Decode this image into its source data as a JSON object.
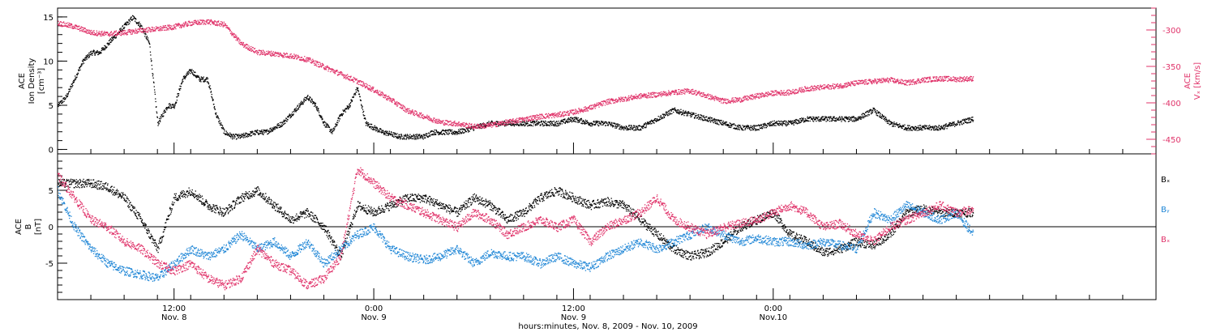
{
  "colors": {
    "black": "#000000",
    "pink": "#e0336a",
    "blue": "#1f86d6"
  },
  "chart_data": [
    {
      "type": "scatter",
      "panel": "top",
      "left_axis": {
        "label_lines": [
          "ACE",
          "Ion Density",
          "[cm⁻³]"
        ],
        "ylim": [
          -0.5,
          16
        ],
        "ticks": [
          0,
          5,
          10,
          15
        ],
        "tick_labels": [
          "0",
          "5",
          "10",
          "15"
        ]
      },
      "right_axis": {
        "label_lines": [
          "ACE",
          "Vₓ [km/s]"
        ],
        "ylim": [
          -470,
          -270
        ],
        "ticks": [
          -450,
          -400,
          -350,
          -300
        ],
        "tick_labels": [
          "-450",
          "-400",
          "-350",
          "-300"
        ]
      },
      "series": [
        {
          "axis": "left",
          "color": "black",
          "x_hours": [
            0,
            0.5,
            1,
            1.5,
            2,
            2.5,
            3,
            3.5,
            4,
            4.5,
            5,
            5.5,
            6,
            6.3,
            6.6,
            7,
            7.5,
            8,
            8.5,
            9,
            9.5,
            10,
            10.5,
            11,
            11.5,
            12,
            12.5,
            13,
            13.5,
            14,
            14.5,
            15,
            15.5,
            16,
            16.5,
            17,
            17.5,
            18,
            18.5,
            19,
            19.5,
            20,
            20.5,
            21,
            21.5,
            22,
            22.5,
            23,
            23.5,
            24,
            25,
            26,
            27,
            28,
            29,
            30,
            31,
            32,
            33,
            34,
            35,
            36,
            37,
            38,
            39,
            40,
            41,
            42,
            43,
            44,
            45,
            46,
            47,
            48,
            49,
            50,
            51,
            52,
            53,
            54,
            55
          ],
          "values": [
            5,
            6,
            8,
            10,
            11,
            11,
            12,
            13,
            14,
            15,
            14,
            12,
            3,
            4,
            5,
            5,
            8,
            9,
            8,
            8,
            4,
            2,
            1.5,
            1.5,
            1.8,
            2,
            2,
            2.5,
            3,
            4,
            5,
            6,
            5,
            3,
            2,
            4,
            5,
            7,
            3,
            2.5,
            2,
            1.8,
            1.5,
            1.5,
            1.5,
            1.5,
            2,
            2,
            2,
            2,
            2.5,
            3,
            3,
            3,
            3,
            3,
            3.5,
            3,
            3,
            2.5,
            2.5,
            3.5,
            4.5,
            4,
            3.5,
            3,
            2.5,
            2.5,
            3,
            3,
            3.5,
            3.5,
            3.5,
            3.5,
            4.5,
            3,
            2.5,
            2.5,
            2.5,
            3,
            3.5
          ]
        },
        {
          "axis": "right",
          "color": "pink",
          "x_hours": [
            0,
            1,
            2,
            3,
            4,
            5,
            6,
            7,
            8,
            9,
            10,
            11,
            12,
            13,
            14,
            15,
            16,
            17,
            18,
            19,
            20,
            21,
            22,
            23,
            24,
            25,
            26,
            27,
            28,
            29,
            30,
            31,
            32,
            33,
            34,
            35,
            36,
            37,
            38,
            39,
            40,
            41,
            42,
            43,
            44,
            45,
            46,
            47,
            48,
            49,
            50,
            51,
            52,
            53,
            54,
            55
          ],
          "values": [
            -290,
            -295,
            -303,
            -305,
            -303,
            -300,
            -298,
            -295,
            -290,
            -288,
            -292,
            -318,
            -330,
            -332,
            -335,
            -340,
            -350,
            -360,
            -370,
            -382,
            -395,
            -410,
            -418,
            -426,
            -428,
            -432,
            -430,
            -426,
            -422,
            -418,
            -416,
            -412,
            -406,
            -398,
            -394,
            -390,
            -388,
            -385,
            -383,
            -390,
            -397,
            -395,
            -390,
            -386,
            -385,
            -380,
            -378,
            -376,
            -372,
            -370,
            -368,
            -372,
            -368,
            -366,
            -367,
            -366
          ]
        }
      ]
    },
    {
      "type": "scatter",
      "panel": "bottom",
      "left_axis": {
        "label_lines": [
          "ACE",
          "B",
          "[nT]"
        ],
        "ylim": [
          -10,
          10
        ],
        "ticks": [
          -5,
          0,
          5
        ],
        "tick_labels": [
          "-5",
          "0",
          "5"
        ]
      },
      "legend": {
        "placement": "right",
        "entries": [
          {
            "label": "Bₓ",
            "color": "black"
          },
          {
            "label": "Bᵧ",
            "color": "blue"
          },
          {
            "label": "Bₓ",
            "color": "pink"
          }
        ]
      },
      "series": [
        {
          "color": "black",
          "x_hours": [
            0,
            1,
            2,
            3,
            4,
            5,
            6,
            7,
            8,
            9,
            10,
            11,
            12,
            13,
            14,
            15,
            16,
            17,
            18,
            19,
            20,
            21,
            22,
            23,
            24,
            25,
            26,
            27,
            28,
            29,
            30,
            31,
            32,
            33,
            34,
            35,
            36,
            37,
            38,
            39,
            40,
            41,
            42,
            43,
            44,
            45,
            46,
            47,
            48,
            49,
            50,
            51,
            52,
            53,
            54,
            55
          ],
          "values": [
            6,
            6,
            6,
            5.5,
            4,
            1,
            -3,
            4,
            5,
            3,
            2,
            4,
            5,
            3,
            1,
            2,
            0,
            -4,
            3,
            2,
            3,
            4,
            4,
            3,
            2,
            4,
            3,
            1,
            2,
            4,
            5,
            4,
            3,
            3.5,
            3,
            1,
            -1,
            -3,
            -4,
            -3.5,
            -2,
            0,
            1,
            2,
            -1,
            -2,
            -3.5,
            -3,
            -2,
            -2.5,
            -1,
            2,
            2.5,
            2,
            2,
            2
          ]
        },
        {
          "color": "blue",
          "x_hours": [
            0,
            1,
            2,
            3,
            4,
            5,
            6,
            7,
            8,
            9,
            10,
            11,
            12,
            13,
            14,
            15,
            16,
            17,
            18,
            19,
            20,
            21,
            22,
            23,
            24,
            25,
            26,
            27,
            28,
            29,
            30,
            31,
            32,
            33,
            34,
            35,
            36,
            37,
            38,
            39,
            40,
            41,
            42,
            43,
            44,
            45,
            46,
            47,
            48,
            49,
            50,
            51,
            52,
            53,
            54,
            55
          ],
          "values": [
            5,
            0,
            -3,
            -5,
            -6,
            -6.5,
            -7,
            -5,
            -3,
            -4,
            -3,
            -1,
            -3,
            -2,
            -4,
            -2,
            -5,
            -3,
            -1,
            0,
            -3,
            -4,
            -4.5,
            -4,
            -3,
            -5,
            -3.5,
            -4,
            -4,
            -5,
            -4,
            -5,
            -5.5,
            -4,
            -3,
            -2,
            -3,
            -2,
            -1,
            0,
            -1,
            -2,
            -1.5,
            -2,
            -2,
            -2.5,
            -2,
            -2.5,
            -3,
            2,
            1,
            3,
            2,
            1,
            2,
            -1
          ]
        },
        {
          "color": "pink",
          "x_hours": [
            0,
            1,
            2,
            3,
            4,
            5,
            6,
            7,
            8,
            9,
            10,
            11,
            12,
            13,
            14,
            15,
            16,
            17,
            18,
            19,
            20,
            21,
            22,
            23,
            24,
            25,
            26,
            27,
            28,
            29,
            30,
            31,
            32,
            33,
            34,
            35,
            36,
            37,
            38,
            39,
            40,
            41,
            42,
            43,
            44,
            45,
            46,
            47,
            48,
            49,
            50,
            51,
            52,
            53,
            54,
            55
          ],
          "values": [
            7,
            4,
            1,
            0,
            -2,
            -3,
            -5,
            -6,
            -5,
            -7,
            -8,
            -7,
            -3,
            -5,
            -6,
            -8,
            -7,
            -4,
            8,
            6,
            4,
            3,
            2,
            1,
            0,
            2,
            1,
            -1,
            0,
            1,
            0,
            1,
            -2,
            0,
            1,
            2,
            4,
            1,
            0,
            -1,
            0,
            0.5,
            1,
            2,
            3,
            2,
            0,
            0.5,
            -1,
            -2,
            0,
            1,
            2,
            3,
            2,
            2.5
          ]
        }
      ]
    }
  ],
  "x_axis": {
    "xlim_hours": [
      0,
      66
    ],
    "major_ticks": [
      {
        "hour": 7,
        "time": "12:00",
        "date": "Nov. 8"
      },
      {
        "hour": 19,
        "time": "0:00",
        "date": "Nov. 9"
      },
      {
        "hour": 31,
        "time": "12:00",
        "date": "Nov. 9"
      },
      {
        "hour": 43,
        "time": "0:00",
        "date": "Nov.10"
      }
    ],
    "minor_tick_step_hours": 2,
    "label": "hours:minutes, Nov.  8, 2009 - Nov. 10, 2009"
  }
}
